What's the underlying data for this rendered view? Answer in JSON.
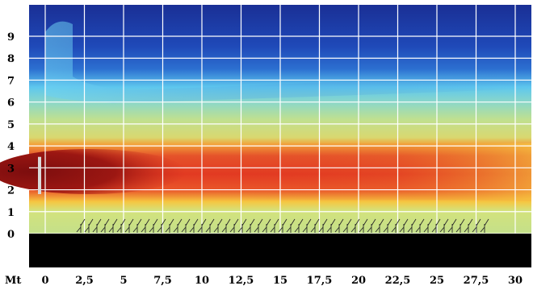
{
  "chart_data": {
    "type": "heatmap",
    "title": "",
    "xlabel": "Mt",
    "ylabel": "",
    "xlim": [
      0,
      30
    ],
    "ylim": [
      0,
      9
    ],
    "x_ticks": [
      "0",
      "2,5",
      "5",
      "7,5",
      "10",
      "12,5",
      "15",
      "17,5",
      "20",
      "22,5",
      "25",
      "27,5",
      "30"
    ],
    "y_ticks": [
      "0",
      "1",
      "2",
      "3",
      "4",
      "5",
      "6",
      "7",
      "8",
      "9"
    ],
    "grid": true,
    "colormap": [
      "#142f9a",
      "#2f6fd0",
      "#58c4ec",
      "#9fdcba",
      "#c4e08a",
      "#f6c640",
      "#f08a2c",
      "#e23a22",
      "#b8201a",
      "#7c0d0e"
    ],
    "ground_color": "#000000",
    "heatmap_bands": [
      {
        "y_from": 9.0,
        "y_to": 7.6,
        "color": "#142f9a"
      },
      {
        "y_from": 7.6,
        "y_to": 6.6,
        "color": "#2f6fd0"
      },
      {
        "y_from": 6.6,
        "y_to": 5.9,
        "color": "#58c4ec"
      },
      {
        "y_from": 5.9,
        "y_to": 4.9,
        "color": "#9fdcba"
      },
      {
        "y_from": 4.9,
        "y_to": 4.1,
        "color": "#c4e08a"
      },
      {
        "y_from": 4.1,
        "y_to": 3.6,
        "color": "#f08a2c"
      },
      {
        "y_from": 3.6,
        "y_to": 1.6,
        "color": "#e23a22"
      },
      {
        "y_from": 1.6,
        "y_to": 1.0,
        "color": "#f6c640"
      },
      {
        "y_from": 1.0,
        "y_to": 0.0,
        "color": "#c4e08a"
      }
    ],
    "core_region": {
      "x_from": 0,
      "x_to": 5,
      "y_from": 1.8,
      "y_to": 3.4,
      "color": "#7c0d0e"
    },
    "source_marker": {
      "x": 0,
      "y_from": 1.8,
      "y_to": 3.5,
      "color": "#d9d9d9"
    }
  }
}
